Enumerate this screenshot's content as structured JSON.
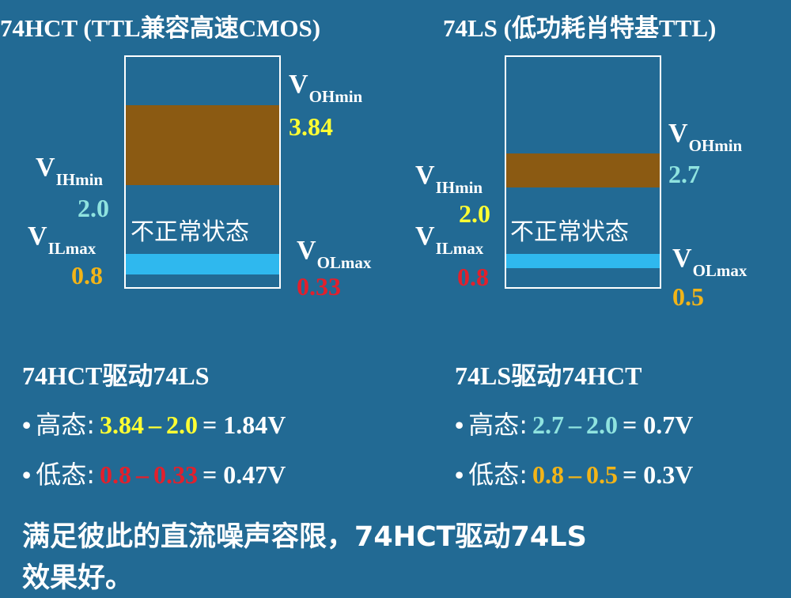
{
  "panels": [
    {
      "title": "74HCT (TTL兼容高速CMOS)",
      "band_label": "不正常状态",
      "voh": {
        "symbol": "V",
        "subscript": "OHmin",
        "value": "3.84"
      },
      "vih": {
        "symbol": "V",
        "subscript": "IHmin",
        "value": "2.0"
      },
      "vil": {
        "symbol": "V",
        "subscript": "ILmax",
        "value": "0.8"
      },
      "vol": {
        "symbol": "V",
        "subscript": "OLmax",
        "value": "0.33"
      }
    },
    {
      "title": "74LS (低功耗肖特基TTL)",
      "band_label": "不正常状态",
      "voh": {
        "symbol": "V",
        "subscript": "OHmin",
        "value": "2.7"
      },
      "vih": {
        "symbol": "V",
        "subscript": "IHmin",
        "value": "2.0"
      },
      "vil": {
        "symbol": "V",
        "subscript": "ILmax",
        "value": "0.8"
      },
      "vol": {
        "symbol": "V",
        "subscript": "OLmax",
        "value": "0.5"
      }
    }
  ],
  "sections": [
    {
      "heading": "74HCT驱动74LS",
      "lines": [
        {
          "bullet": "•",
          "label": "高态:",
          "a": "3.84",
          "dash": "–",
          "b": "2.0",
          "result": "= 1.84V"
        },
        {
          "bullet": "•",
          "label": "低态:",
          "a": "0.8",
          "dash": "–",
          "b": "0.33",
          "result": "= 0.47V"
        }
      ]
    },
    {
      "heading": "74LS驱动74HCT",
      "lines": [
        {
          "bullet": "•",
          "label": "高态:",
          "a": "2.7",
          "dash": "–",
          "b": "2.0",
          "result": "= 0.7V"
        },
        {
          "bullet": "•",
          "label": "低态:",
          "a": "0.8",
          "dash": "–",
          "b": "0.5",
          "result": "= 0.3V"
        }
      ]
    }
  ],
  "conclusion": [
    "满足彼此的直流噪声容限，74HCT驱动74LS",
    "效果好。"
  ]
}
